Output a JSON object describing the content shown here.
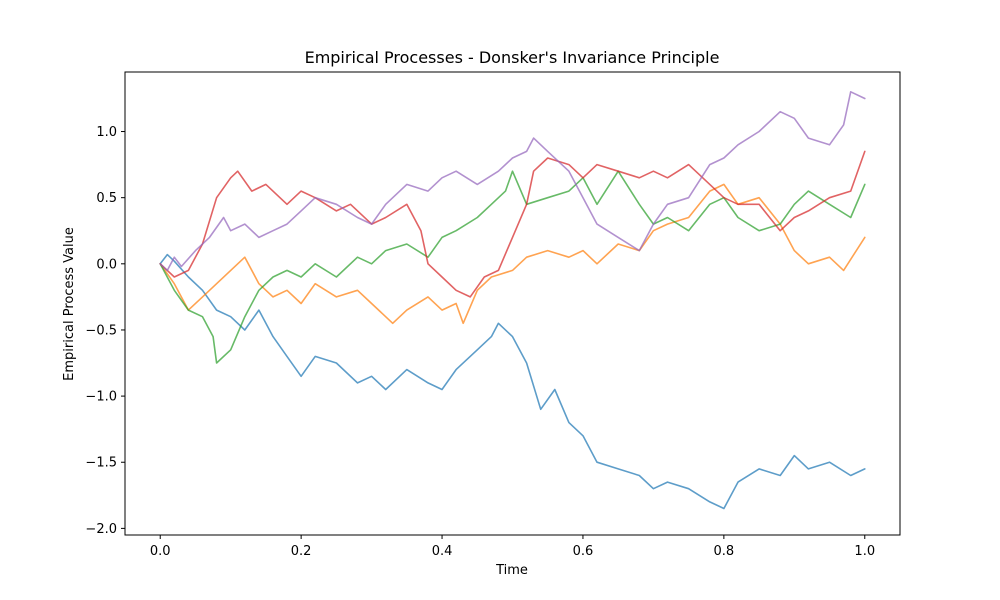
{
  "chart_data": {
    "type": "line",
    "title": "Empirical Processes - Donsker's Invariance Principle",
    "xlabel": "Time",
    "ylabel": "Empirical Process Value",
    "xlim": [
      -0.05,
      1.05
    ],
    "ylim": [
      -2.05,
      1.45
    ],
    "xticks": [
      0.0,
      0.2,
      0.4,
      0.6,
      0.8,
      1.0
    ],
    "xtick_labels": [
      "0.0",
      "0.2",
      "0.4",
      "0.6",
      "0.8",
      "1.0"
    ],
    "yticks": [
      -2.0,
      -1.5,
      -1.0,
      -0.5,
      0.0,
      0.5,
      1.0
    ],
    "ytick_labels": [
      "−2.0",
      "−1.5",
      "−1.0",
      "−0.5",
      "0.0",
      "0.5",
      "1.0"
    ],
    "grid": false,
    "legend": "none",
    "series": [
      {
        "color": "#1f77b4",
        "x": [
          0.0,
          0.01,
          0.02,
          0.04,
          0.06,
          0.08,
          0.1,
          0.12,
          0.14,
          0.16,
          0.18,
          0.2,
          0.22,
          0.25,
          0.28,
          0.3,
          0.32,
          0.35,
          0.38,
          0.4,
          0.42,
          0.45,
          0.47,
          0.48,
          0.5,
          0.52,
          0.54,
          0.56,
          0.58,
          0.6,
          0.62,
          0.65,
          0.68,
          0.7,
          0.72,
          0.75,
          0.78,
          0.8,
          0.82,
          0.85,
          0.88,
          0.9,
          0.92,
          0.95,
          0.98,
          1.0
        ],
        "y": [
          0.0,
          0.07,
          0.02,
          -0.1,
          -0.2,
          -0.35,
          -0.4,
          -0.5,
          -0.35,
          -0.55,
          -0.7,
          -0.85,
          -0.7,
          -0.75,
          -0.9,
          -0.85,
          -0.95,
          -0.8,
          -0.9,
          -0.95,
          -0.8,
          -0.65,
          -0.55,
          -0.45,
          -0.55,
          -0.75,
          -1.1,
          -0.95,
          -1.2,
          -1.3,
          -1.5,
          -1.55,
          -1.6,
          -1.7,
          -1.65,
          -1.7,
          -1.8,
          -1.85,
          -1.65,
          -1.55,
          -1.6,
          -1.45,
          -1.55,
          -1.5,
          -1.6,
          -1.55
        ]
      },
      {
        "color": "#ff7f0e",
        "x": [
          0.0,
          0.02,
          0.04,
          0.06,
          0.08,
          0.1,
          0.12,
          0.14,
          0.16,
          0.18,
          0.2,
          0.22,
          0.25,
          0.28,
          0.3,
          0.33,
          0.35,
          0.38,
          0.4,
          0.42,
          0.43,
          0.45,
          0.47,
          0.5,
          0.52,
          0.55,
          0.58,
          0.6,
          0.62,
          0.65,
          0.68,
          0.7,
          0.72,
          0.75,
          0.78,
          0.8,
          0.82,
          0.85,
          0.88,
          0.9,
          0.92,
          0.95,
          0.97,
          1.0
        ],
        "y": [
          0.0,
          -0.15,
          -0.35,
          -0.25,
          -0.15,
          -0.05,
          0.05,
          -0.15,
          -0.25,
          -0.2,
          -0.3,
          -0.15,
          -0.25,
          -0.2,
          -0.3,
          -0.45,
          -0.35,
          -0.25,
          -0.35,
          -0.3,
          -0.45,
          -0.2,
          -0.1,
          -0.05,
          0.05,
          0.1,
          0.05,
          0.1,
          0.0,
          0.15,
          0.1,
          0.25,
          0.3,
          0.35,
          0.55,
          0.6,
          0.45,
          0.5,
          0.3,
          0.1,
          0.0,
          0.05,
          -0.05,
          0.2
        ]
      },
      {
        "color": "#2ca02c",
        "x": [
          0.0,
          0.02,
          0.04,
          0.06,
          0.075,
          0.08,
          0.1,
          0.12,
          0.14,
          0.16,
          0.18,
          0.2,
          0.22,
          0.25,
          0.28,
          0.3,
          0.32,
          0.35,
          0.38,
          0.4,
          0.42,
          0.45,
          0.47,
          0.49,
          0.5,
          0.52,
          0.55,
          0.58,
          0.6,
          0.62,
          0.65,
          0.68,
          0.7,
          0.72,
          0.75,
          0.78,
          0.8,
          0.82,
          0.85,
          0.88,
          0.9,
          0.92,
          0.95,
          0.98,
          1.0
        ],
        "y": [
          0.0,
          -0.2,
          -0.35,
          -0.4,
          -0.55,
          -0.75,
          -0.65,
          -0.4,
          -0.2,
          -0.1,
          -0.05,
          -0.1,
          0.0,
          -0.1,
          0.05,
          0.0,
          0.1,
          0.15,
          0.05,
          0.2,
          0.25,
          0.35,
          0.45,
          0.55,
          0.7,
          0.45,
          0.5,
          0.55,
          0.65,
          0.45,
          0.7,
          0.45,
          0.3,
          0.35,
          0.25,
          0.45,
          0.5,
          0.35,
          0.25,
          0.3,
          0.45,
          0.55,
          0.45,
          0.35,
          0.6
        ]
      },
      {
        "color": "#d62728",
        "x": [
          0.0,
          0.02,
          0.04,
          0.06,
          0.08,
          0.1,
          0.11,
          0.13,
          0.15,
          0.18,
          0.2,
          0.22,
          0.25,
          0.27,
          0.3,
          0.32,
          0.35,
          0.37,
          0.38,
          0.4,
          0.42,
          0.44,
          0.46,
          0.48,
          0.5,
          0.52,
          0.53,
          0.55,
          0.58,
          0.6,
          0.62,
          0.65,
          0.68,
          0.7,
          0.72,
          0.75,
          0.78,
          0.8,
          0.82,
          0.85,
          0.88,
          0.9,
          0.92,
          0.95,
          0.98,
          1.0
        ],
        "y": [
          0.0,
          -0.1,
          -0.05,
          0.15,
          0.5,
          0.65,
          0.7,
          0.55,
          0.6,
          0.45,
          0.55,
          0.5,
          0.4,
          0.45,
          0.3,
          0.35,
          0.45,
          0.25,
          0.0,
          -0.1,
          -0.2,
          -0.25,
          -0.1,
          -0.05,
          0.2,
          0.45,
          0.7,
          0.8,
          0.75,
          0.65,
          0.75,
          0.7,
          0.65,
          0.7,
          0.65,
          0.75,
          0.6,
          0.5,
          0.45,
          0.45,
          0.25,
          0.35,
          0.4,
          0.5,
          0.55,
          0.85
        ]
      },
      {
        "color": "#9467bd",
        "x": [
          0.0,
          0.01,
          0.02,
          0.03,
          0.05,
          0.07,
          0.09,
          0.1,
          0.12,
          0.14,
          0.16,
          0.18,
          0.2,
          0.22,
          0.25,
          0.28,
          0.3,
          0.32,
          0.35,
          0.38,
          0.4,
          0.42,
          0.45,
          0.48,
          0.5,
          0.52,
          0.53,
          0.55,
          0.58,
          0.6,
          0.62,
          0.65,
          0.68,
          0.7,
          0.72,
          0.75,
          0.78,
          0.8,
          0.82,
          0.85,
          0.88,
          0.9,
          0.92,
          0.95,
          0.97,
          0.98,
          1.0
        ],
        "y": [
          0.0,
          -0.05,
          0.05,
          -0.02,
          0.1,
          0.2,
          0.35,
          0.25,
          0.3,
          0.2,
          0.25,
          0.3,
          0.4,
          0.5,
          0.45,
          0.35,
          0.3,
          0.45,
          0.6,
          0.55,
          0.65,
          0.7,
          0.6,
          0.7,
          0.8,
          0.85,
          0.95,
          0.85,
          0.7,
          0.5,
          0.3,
          0.2,
          0.1,
          0.3,
          0.45,
          0.5,
          0.75,
          0.8,
          0.9,
          1.0,
          1.15,
          1.1,
          0.95,
          0.9,
          1.05,
          1.3,
          1.25
        ]
      }
    ]
  }
}
